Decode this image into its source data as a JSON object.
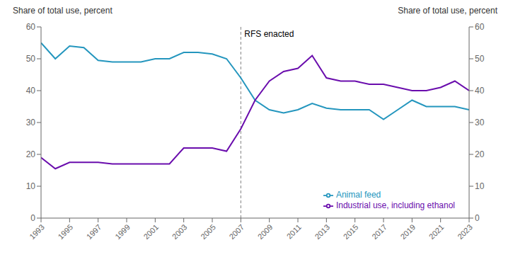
{
  "chart_data": {
    "type": "line",
    "x": [
      1993,
      1994,
      1995,
      1996,
      1997,
      1998,
      1999,
      2000,
      2001,
      2002,
      2003,
      2004,
      2005,
      2006,
      2007,
      2008,
      2009,
      2010,
      2011,
      2012,
      2013,
      2014,
      2015,
      2016,
      2017,
      2018,
      2019,
      2020,
      2021,
      2022,
      2023
    ],
    "series": [
      {
        "name": "Animal feed",
        "color": "#2496be",
        "values": [
          55,
          50,
          54,
          53.5,
          49.5,
          49,
          49,
          49,
          50,
          50,
          52,
          52,
          51.5,
          50,
          44,
          37,
          34,
          33,
          34,
          36,
          34.5,
          34,
          34,
          34,
          31,
          34,
          37,
          35,
          35,
          35,
          34
        ]
      },
      {
        "name": "Industrial use, including ethanol",
        "color": "#6a0dad",
        "values": [
          19,
          15.5,
          17.5,
          17.5,
          17.5,
          17,
          17,
          17,
          17,
          17,
          22,
          22,
          22,
          21,
          28,
          37,
          43,
          46,
          47,
          51,
          44,
          43,
          43,
          42,
          42,
          41,
          40,
          40,
          41,
          43,
          40
        ]
      }
    ],
    "xlim": [
      1993,
      2023
    ],
    "xticks": [
      1993,
      1995,
      1997,
      1999,
      2001,
      2003,
      2005,
      2007,
      2009,
      2011,
      2013,
      2015,
      2017,
      2019,
      2021,
      2023
    ],
    "ylim": [
      0,
      60
    ],
    "yticks": [
      0,
      10,
      20,
      30,
      40,
      50,
      60
    ],
    "y2lim": [
      0,
      60
    ],
    "y2ticks": [
      0,
      10,
      20,
      30,
      40,
      50,
      60
    ],
    "ylabel": "Share of total use, percent",
    "y2label": "Share of total use, percent",
    "annotations": [
      {
        "type": "vline",
        "x": 2007,
        "label": "RFS enacted",
        "line_style": "dashed"
      }
    ],
    "legend": "lower right",
    "grid": false
  }
}
